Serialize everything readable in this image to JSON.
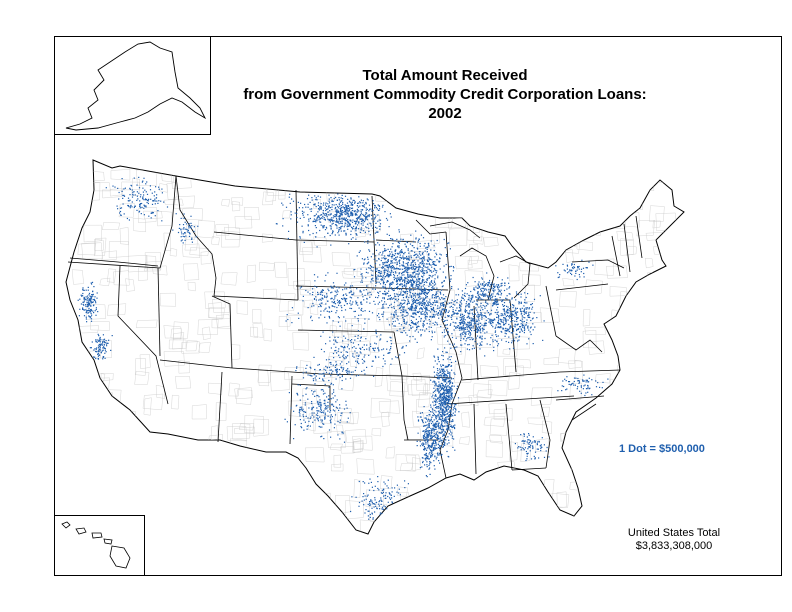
{
  "title_line1": "Total Amount Received",
  "title_line2": "from Government Commodity Credit Corporation Loans:  2002",
  "legend": "1 Dot = $500,000",
  "total_label": "United States Total",
  "total_value": "$3,833,308,000",
  "colors": {
    "dot": "#1f5fae",
    "border": "#000000",
    "county": "#bfbfbf"
  },
  "dot_clusters": [
    {
      "region": "Minnesota-Iowa corn belt",
      "weight": 1.0
    },
    {
      "region": "Mississippi Delta",
      "weight": 0.7
    },
    {
      "region": "Illinois-Indiana-Ohio",
      "weight": 0.6
    },
    {
      "region": "Northern Plains",
      "weight": 0.45
    },
    {
      "region": "Texas & Southern Plains",
      "weight": 0.4
    },
    {
      "region": "California Central Valley",
      "weight": 0.25
    },
    {
      "region": "Pacific Northwest",
      "weight": 0.2
    },
    {
      "region": "Southeast",
      "weight": 0.15
    }
  ]
}
